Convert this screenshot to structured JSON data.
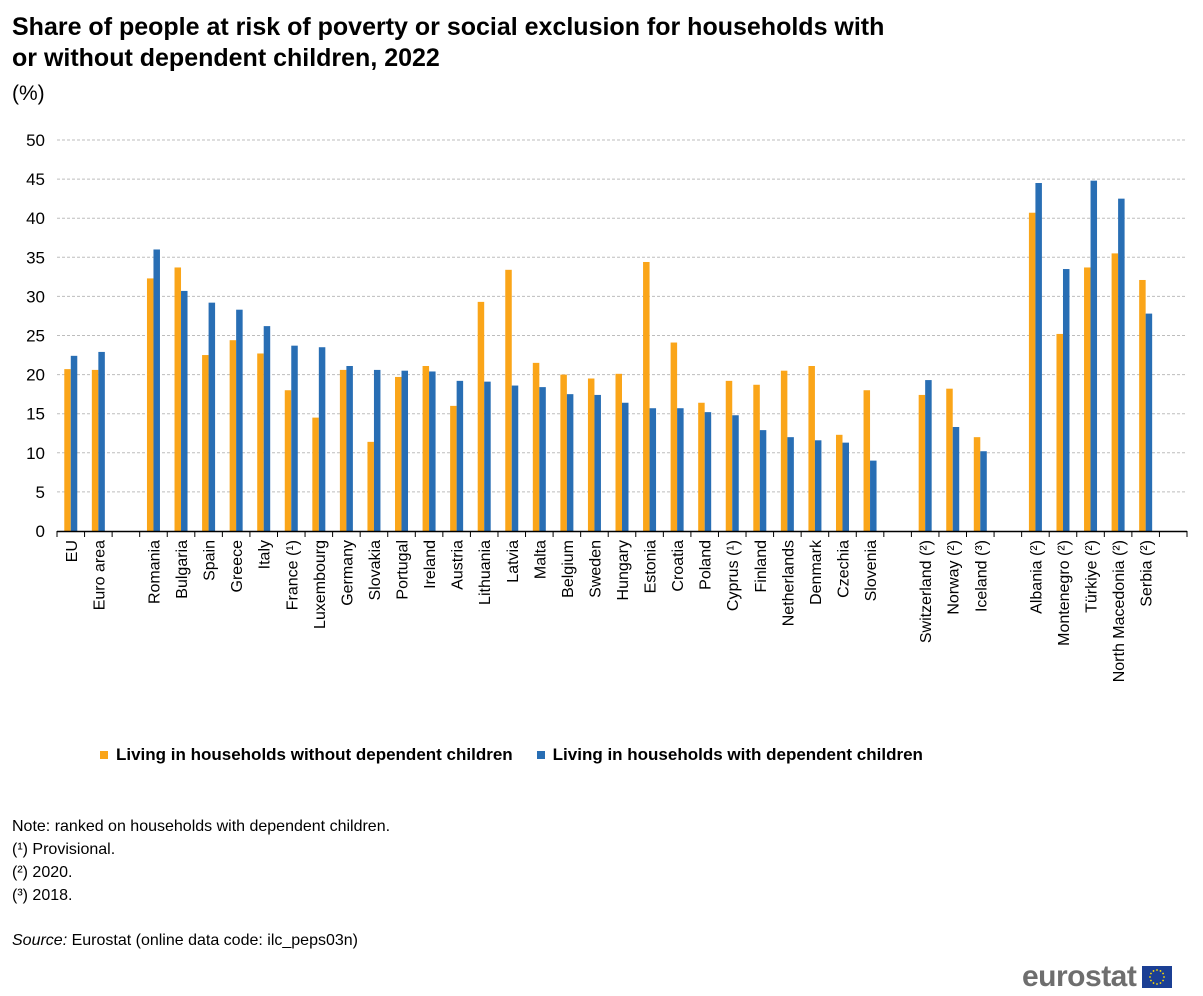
{
  "title": "Share of people at risk of poverty or social exclusion for households with or without dependent children, 2022",
  "unit": "(%)",
  "chart_data": {
    "type": "bar",
    "title": "Share of people at risk of poverty or social exclusion for households with or without dependent children, 2022",
    "ylabel": "(%)",
    "ylim": [
      0,
      50
    ],
    "yticks": [
      "0",
      "5",
      "10",
      "15",
      "20",
      "25",
      "30",
      "35",
      "40",
      "45",
      "50"
    ],
    "grid": true,
    "legend_position": "bottom",
    "categories": [
      "EU",
      "Euro area",
      "",
      "Romania",
      "Bulgaria",
      "Spain",
      "Greece",
      "Italy",
      "France (¹)",
      "Luxembourg",
      "Germany",
      "Slovakia",
      "Portugal",
      "Ireland",
      "Austria",
      "Lithuania",
      "Latvia",
      "Malta",
      "Belgium",
      "Sweden",
      "Hungary",
      "Estonia",
      "Croatia",
      "Poland",
      "Cyprus (¹)",
      "Finland",
      "Netherlands",
      "Denmark",
      "Czechia",
      "Slovenia",
      "",
      "Switzerland (²)",
      "Norway (²)",
      "Iceland (³)",
      "",
      "Albania (²)",
      "Montenegro (²)",
      "Türkiye (²)",
      "North Macedonia (²)",
      "Serbia (²)",
      ""
    ],
    "series": [
      {
        "name": "Living in households without dependent children",
        "color": "#faa519",
        "values": [
          20.7,
          20.6,
          null,
          32.3,
          33.7,
          22.5,
          24.4,
          22.7,
          18.0,
          14.5,
          20.6,
          11.4,
          19.7,
          21.1,
          16.0,
          29.3,
          33.4,
          21.5,
          20.0,
          19.5,
          20.1,
          34.4,
          24.1,
          16.4,
          19.2,
          18.7,
          20.5,
          21.1,
          12.3,
          18.0,
          null,
          17.4,
          18.2,
          12.0,
          null,
          40.7,
          25.2,
          33.7,
          35.5,
          32.1,
          null
        ]
      },
      {
        "name": "Living in households with dependent children",
        "color": "#286eb4",
        "values": [
          22.4,
          22.9,
          null,
          36.0,
          30.7,
          29.2,
          28.3,
          26.2,
          23.7,
          23.5,
          21.1,
          20.6,
          20.5,
          20.4,
          19.2,
          19.1,
          18.6,
          18.4,
          17.5,
          17.4,
          16.4,
          15.7,
          15.7,
          15.2,
          14.8,
          12.9,
          12.0,
          11.6,
          11.3,
          9.0,
          null,
          19.3,
          13.3,
          10.2,
          null,
          44.5,
          33.5,
          44.8,
          42.5,
          27.8,
          null
        ]
      }
    ]
  },
  "notes": [
    "Note: ranked on households  with dependent children.",
    "(¹) Provisional.",
    "(²) 2020.",
    "(³) 2018."
  ],
  "source": {
    "label": "Source:",
    "text": " Eurostat (online data code: ilc_peps03n)"
  },
  "logo": "eurostat"
}
